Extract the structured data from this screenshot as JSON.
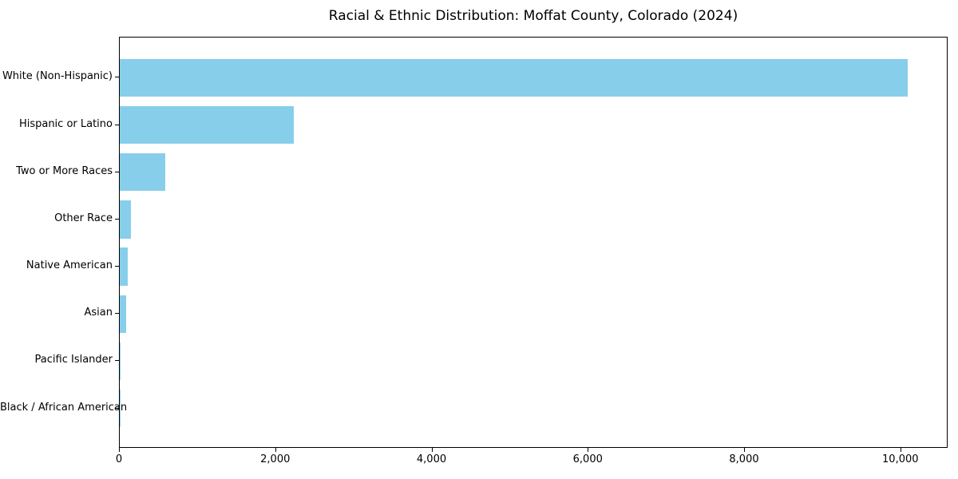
{
  "title": "Racial & Ethnic Distribution: Moffat County, Colorado (2024)",
  "colors": {
    "bar": "#87CEEB",
    "text": "#000000",
    "spine": "#000000",
    "background": "#ffffff"
  },
  "chart_data": {
    "type": "bar",
    "orientation": "horizontal",
    "title": "Racial & Ethnic Distribution: Moffat County, Colorado (2024)",
    "categories": [
      "White (Non-Hispanic)",
      "Hispanic or Latino",
      "Two or More Races",
      "Other Race",
      "Native American",
      "Asian",
      "Pacific Islander",
      "Black / African American"
    ],
    "values": [
      10100,
      2230,
      580,
      145,
      100,
      80,
      12,
      3
    ],
    "xlabel": "",
    "ylabel": "",
    "xlim": [
      0,
      10605
    ],
    "xticks": [
      0,
      2000,
      4000,
      6000,
      8000,
      10000
    ],
    "xtick_labels": [
      "0",
      "2,000",
      "4,000",
      "6,000",
      "8,000",
      "10,000"
    ],
    "grid": false,
    "legend": null,
    "bar_color": "#87CEEB",
    "bar_order": "largest_at_top"
  }
}
